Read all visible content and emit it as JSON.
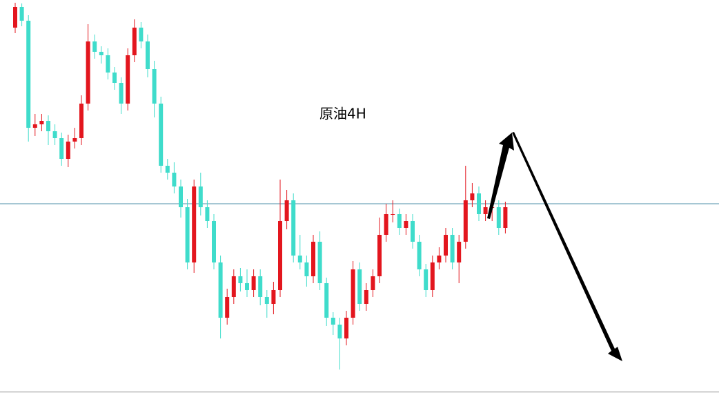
{
  "chart_data": {
    "type": "candlestick",
    "title": "原油4H",
    "ylim": [
      0,
      569
    ],
    "up_color": "#e3161e",
    "down_color": "#3fdccb",
    "reference_line": {
      "value": 274,
      "color": "#4c8fa8"
    },
    "open": [
      529,
      559,
      539,
      384,
      389,
      394,
      379,
      369,
      339,
      364,
      369,
      419,
      509,
      494,
      489,
      464,
      449,
      419,
      489,
      529,
      509,
      469,
      419,
      329,
      319,
      299,
      269,
      189,
      299,
      269,
      249,
      189,
      109,
      139,
      169,
      159,
      149,
      169,
      139,
      129,
      149,
      249,
      279,
      199,
      189,
      169,
      219,
      159,
      109,
      99,
      79,
      109,
      179,
      129,
      149,
      169,
      229,
      259,
      259,
      239,
      249,
      219,
      179,
      149,
      189,
      199,
      229,
      189,
      219,
      279,
      289,
      259,
      269,
      269,
      239
    ],
    "close": [
      559,
      539,
      384,
      389,
      394,
      379,
      369,
      339,
      364,
      369,
      419,
      509,
      494,
      489,
      464,
      449,
      419,
      489,
      529,
      509,
      469,
      419,
      329,
      319,
      299,
      269,
      189,
      299,
      269,
      249,
      189,
      109,
      139,
      169,
      159,
      149,
      169,
      139,
      129,
      149,
      249,
      279,
      199,
      189,
      169,
      219,
      159,
      109,
      99,
      79,
      109,
      179,
      129,
      149,
      169,
      229,
      259,
      259,
      239,
      249,
      219,
      179,
      149,
      189,
      199,
      229,
      189,
      219,
      279,
      289,
      259,
      269,
      269,
      239,
      269
    ],
    "high": [
      565,
      564,
      547,
      404,
      404,
      402,
      389,
      377,
      374,
      384,
      431,
      534,
      519,
      502,
      499,
      472,
      457,
      499,
      541,
      537,
      519,
      481,
      429,
      339,
      334,
      309,
      281,
      309,
      319,
      279,
      259,
      199,
      151,
      179,
      181,
      179,
      179,
      179,
      149,
      161,
      309,
      294,
      289,
      229,
      199,
      229,
      234,
      167,
      117,
      109,
      119,
      191,
      189,
      159,
      179,
      254,
      274,
      279,
      267,
      259,
      259,
      229,
      187,
      199,
      211,
      239,
      239,
      229,
      329,
      304,
      299,
      279,
      279,
      279,
      277
    ],
    "low": [
      521,
      531,
      364,
      372,
      379,
      359,
      359,
      329,
      327,
      354,
      359,
      409,
      484,
      477,
      454,
      439,
      404,
      409,
      479,
      499,
      457,
      399,
      319,
      309,
      289,
      254,
      179,
      174,
      257,
      239,
      179,
      79,
      99,
      129,
      147,
      139,
      139,
      127,
      109,
      114,
      139,
      237,
      189,
      179,
      154,
      159,
      149,
      97,
      84,
      34,
      69,
      99,
      119,
      119,
      139,
      159,
      219,
      247,
      229,
      229,
      209,
      169,
      139,
      139,
      179,
      189,
      179,
      159,
      209,
      269,
      249,
      249,
      249,
      229,
      231
    ]
  }
}
